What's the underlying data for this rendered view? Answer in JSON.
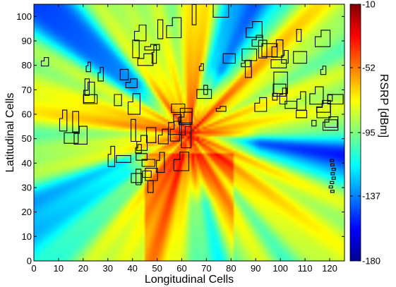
{
  "chart_data": {
    "type": "heatmap",
    "title": "",
    "xlabel": "Longitudinal Cells",
    "ylabel": "Latitudinal Cells",
    "xlim": [
      0,
      126
    ],
    "ylim": [
      0,
      105
    ],
    "x_ticks": [
      0,
      10,
      20,
      30,
      40,
      50,
      60,
      70,
      80,
      90,
      100,
      110,
      120
    ],
    "y_ticks": [
      0,
      10,
      20,
      30,
      40,
      50,
      60,
      70,
      80,
      90,
      100
    ],
    "transmitter": {
      "x": 63,
      "y": 52
    },
    "value_range": [
      -180,
      -10
    ],
    "colorbar": {
      "label": "RSRP [dBm]",
      "min": -180,
      "max": -10,
      "ticks": [
        -10,
        -52,
        -95,
        -137,
        -180
      ],
      "colormap": "jet"
    },
    "grid": false,
    "buildings_overlay": true
  }
}
